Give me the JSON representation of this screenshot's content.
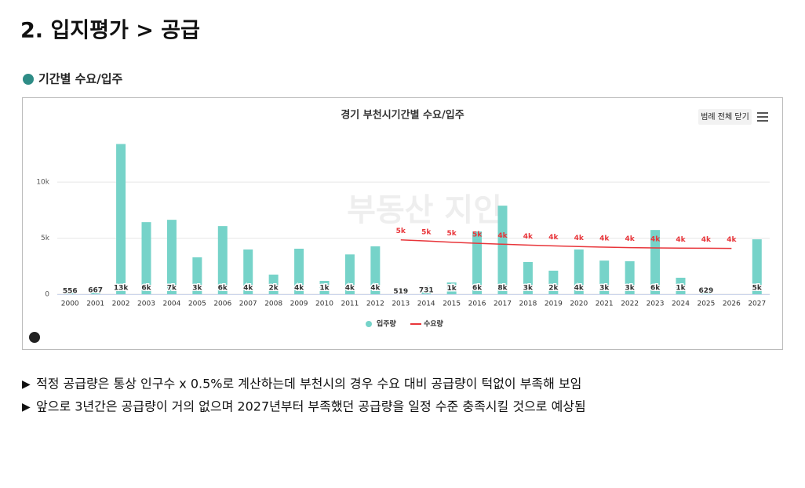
{
  "header": {
    "title": "2. 입지평가 > 공급",
    "subtitle": "기간별 수요/입주"
  },
  "legend_button": "범례 전체 닫기",
  "watermark": "부동산 지인",
  "notes": [
    "적정 공급량은 통상 인구수 x 0.5%로 계산하는데 부천시의 경우 수요 대비 공급량이 턱없이 부족해 보임",
    "앞으로 3년간은 공급량이 거의 없으며 2027년부터 부족했던 공급량을 일정 수준 충족시킬 것으로 예상됨"
  ],
  "chart_data": {
    "type": "bar",
    "title": "경기 부천시기간별 수요/입주",
    "categories": [
      "2000",
      "2001",
      "2002",
      "2003",
      "2004",
      "2005",
      "2006",
      "2007",
      "2008",
      "2009",
      "2010",
      "2011",
      "2012",
      "2013",
      "2014",
      "2015",
      "2016",
      "2017",
      "2018",
      "2019",
      "2020",
      "2021",
      "2022",
      "2023",
      "2024",
      "2025",
      "2026",
      "2027"
    ],
    "series": [
      {
        "name": "입주량",
        "type": "bar",
        "color": "#76d3c9",
        "values": [
          556,
          667,
          13400,
          6430,
          6640,
          3290,
          6080,
          3990,
          1750,
          4060,
          1190,
          3550,
          4270,
          519,
          731,
          1050,
          5600,
          7900,
          2870,
          2100,
          3990,
          3000,
          2940,
          5730,
          1470,
          629,
          null,
          4900
        ],
        "value_labels": [
          "556",
          "667",
          "13k",
          "6k",
          "7k",
          "3k",
          "6k",
          "4k",
          "2k",
          "4k",
          "1k",
          "4k",
          "4k",
          "519",
          "731",
          "1k",
          "6k",
          "8k",
          "3k",
          "2k",
          "4k",
          "3k",
          "3k",
          "6k",
          "1k",
          "629",
          null,
          "5k"
        ]
      },
      {
        "name": "수요량",
        "type": "line",
        "color": "#e8353a",
        "values": [
          null,
          null,
          null,
          null,
          null,
          null,
          null,
          null,
          null,
          null,
          null,
          null,
          null,
          4850,
          4750,
          4640,
          4540,
          4460,
          4380,
          4310,
          4250,
          4200,
          4160,
          4130,
          4110,
          4100,
          4090,
          null
        ],
        "value_labels": [
          null,
          null,
          null,
          null,
          null,
          null,
          null,
          null,
          null,
          null,
          null,
          null,
          null,
          "5k",
          "5k",
          "5k",
          "5k",
          "4k",
          "4k",
          "4k",
          "4k",
          "4k",
          "4k",
          "4k",
          "4k",
          "4k",
          "4k",
          null
        ]
      }
    ],
    "ylim": [
      0,
      14000
    ],
    "yticks": [
      0,
      {
        "value": 5000,
        "label": "5k"
      },
      {
        "value": 10000,
        "label": "10k"
      }
    ],
    "grid": true,
    "legend": "bottom"
  }
}
